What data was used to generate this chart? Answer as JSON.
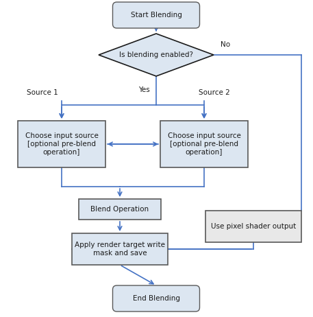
{
  "bg_color": "#ffffff",
  "arrow_color": "#4472c4",
  "box_fill": "#dce6f1",
  "box_edge": "#595959",
  "box_fill_pixel": "#e8e8e8",
  "box_edge_pixel": "#595959",
  "terminal_fill": "#dce6f1",
  "terminal_edge": "#595959",
  "diamond_fill": "#dce6f1",
  "diamond_edge": "#1a1a1a",
  "text_color": "#1a1a1a",
  "font_size": 7.5,
  "start_label": "Start Blending",
  "diamond_label": "Is blending enabled?",
  "src1_label": "Choose input source\n[optional pre-blend\noperation]",
  "src2_label": "Choose input source\n[optional pre-blend\noperation]",
  "blend_label": "Blend Operation",
  "mask_label": "Apply render target write\nmask and save",
  "pixel_label": "Use pixel shader output",
  "end_label": "End Blending",
  "yes_label": "Yes",
  "no_label": "No",
  "source1_label": "Source 1",
  "source2_label": "Source 2"
}
